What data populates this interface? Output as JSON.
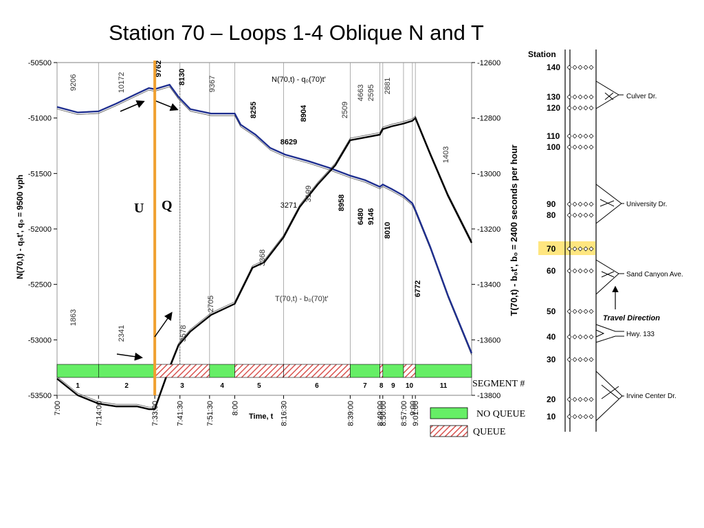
{
  "title": "Station 70 – Loops 1-4 Oblique N and T",
  "chart_data": {
    "type": "line",
    "xlabel": "Time, t",
    "ylabel_left": "N(70,t) - q₀t', q₀ = 9500 vph",
    "ylabel_right": "T(70,t) - b₀t', b₀ = 2400 seconds per hour",
    "ylim_left": [
      -53500,
      -50500
    ],
    "ylim_right": [
      -13800,
      -12600
    ],
    "yticks_left": [
      "-50500",
      "-51000",
      "-51500",
      "-52000",
      "-52500",
      "-53000",
      "-53500"
    ],
    "yticks_right": [
      "-12600",
      "-12800",
      "-13000",
      "-13200",
      "-13400",
      "-13600",
      "-13800"
    ],
    "xticks": [
      {
        "label": "7:00",
        "t": 0
      },
      {
        "label": "7:14:00",
        "t": 14
      },
      {
        "label": "7:33:00",
        "t": 33
      },
      {
        "label": "7:41:30",
        "t": 41.5
      },
      {
        "label": "7:51:30",
        "t": 51.5
      },
      {
        "label": "8:00",
        "t": 60
      },
      {
        "label": "8:16:30",
        "t": 76.5
      },
      {
        "label": "8:39:00",
        "t": 99
      },
      {
        "label": "8:49:00",
        "t": 109
      },
      {
        "label": "8:50:00",
        "t": 110
      },
      {
        "label": "8:57:00",
        "t": 117
      },
      {
        "label": "9:00",
        "t": 120
      },
      {
        "label": "9:01:00",
        "t": 121
      }
    ],
    "xlim": [
      0,
      140
    ],
    "series": [
      {
        "name": "N(70,t) - q₀(70)t'",
        "axis": "left",
        "color": "#1f2f8f",
        "t": [
          0,
          7,
          14,
          20,
          27,
          31,
          33,
          38,
          41,
          45,
          52,
          60,
          62,
          67,
          72,
          77,
          85,
          92,
          99,
          104,
          109,
          110,
          113,
          117,
          120,
          121,
          126,
          132,
          140
        ],
        "values": [
          -50900,
          -50950,
          -50940,
          -50870,
          -50780,
          -50730,
          -50740,
          -50700,
          -50810,
          -50920,
          -50960,
          -50960,
          -51060,
          -51150,
          -51270,
          -51330,
          -51390,
          -51450,
          -51520,
          -51560,
          -51620,
          -51600,
          -51640,
          -51700,
          -51770,
          -51830,
          -52160,
          -52600,
          -53120
        ]
      },
      {
        "name": "T(70,t) - b₀(70)t'",
        "axis": "right",
        "color": "#000000",
        "t": [
          0,
          7,
          14,
          20,
          27,
          31,
          33,
          38,
          41,
          45,
          52,
          60,
          66,
          70,
          76.5,
          82,
          88,
          94,
          99,
          104,
          109,
          110,
          113,
          117,
          120,
          121,
          126,
          132,
          140
        ],
        "values": [
          -13740,
          -13800,
          -13830,
          -13840,
          -13840,
          -13850,
          -13850,
          -13700,
          -13620,
          -13570,
          -13510,
          -13470,
          -13340,
          -13320,
          -13230,
          -13120,
          -13040,
          -12970,
          -12880,
          -12870,
          -12860,
          -12840,
          -12830,
          -12820,
          -12810,
          -12800,
          -12930,
          -13080,
          -13250
        ]
      }
    ],
    "vertical_markers": [
      {
        "t": 33,
        "label": "U",
        "color": "#f0a030"
      },
      {
        "t": 41.5,
        "label": "Q"
      }
    ],
    "annotations_left_axis": [
      {
        "text": "9206",
        "t": 5
      },
      {
        "text": "10172",
        "t": 20
      },
      {
        "text": "9762",
        "t": 37
      },
      {
        "text": "8130",
        "t": 43
      },
      {
        "text": "9367",
        "t": 56
      },
      {
        "text": "8255",
        "t": 68
      },
      {
        "text": "8904",
        "t": 87
      },
      {
        "text": "8629",
        "t": 80
      },
      {
        "text": "2509",
        "t": 102
      },
      {
        "text": "4663",
        "t": 108
      },
      {
        "text": "2595",
        "t": 110
      },
      {
        "text": "2881",
        "t": 118
      },
      {
        "text": "1403",
        "t": 135
      },
      {
        "text": "8958",
        "t": 103
      },
      {
        "text": "6480",
        "t": 109
      },
      {
        "text": "9146",
        "t": 111
      },
      {
        "text": "8010",
        "t": 117
      },
      {
        "text": "6772",
        "t": 125
      },
      {
        "text": "3271",
        "t": 80
      },
      {
        "text": "3199",
        "t": 85
      },
      {
        "text": "3368",
        "t": 75
      },
      {
        "text": "2705",
        "t": 55
      },
      {
        "text": "3578",
        "t": 44
      },
      {
        "text": "2341",
        "t": 23
      },
      {
        "text": "1863",
        "t": 6
      }
    ],
    "series_labels": [
      {
        "text": "N(70,t) - q₀(70)t'"
      },
      {
        "text": "T(70,t) - b₀(70)t'"
      }
    ],
    "segments": [
      {
        "label": "1",
        "t0": 0,
        "t1": 14,
        "queue": false
      },
      {
        "label": "2",
        "t0": 14,
        "t1": 33,
        "queue": false
      },
      {
        "label": "3",
        "t0": 33,
        "t1": 51.5,
        "queue": true
      },
      {
        "label": "4",
        "t0": 51.5,
        "t1": 60,
        "queue": false
      },
      {
        "label": "5",
        "t0": 60,
        "t1": 76.5,
        "queue": true
      },
      {
        "label": "6",
        "t0": 76.5,
        "t1": 99,
        "queue": true
      },
      {
        "label": "7",
        "t0": 99,
        "t1": 109,
        "queue": false
      },
      {
        "label": "8",
        "t0": 109,
        "t1": 110,
        "queue": true
      },
      {
        "label": "9",
        "t0": 110,
        "t1": 117,
        "queue": false
      },
      {
        "label": "10",
        "t0": 117,
        "t1": 121,
        "queue": true
      },
      {
        "label": "11",
        "t0": 121,
        "t1": 140,
        "queue": false
      }
    ],
    "segment_axis_label": "SEGMENT #",
    "legend": [
      {
        "label": "NO QUEUE",
        "queue": false
      },
      {
        "label": "QUEUE",
        "queue": true
      }
    ]
  },
  "station_diagram": {
    "header": "Station",
    "highlight_station": "70",
    "highlight_color": "#ffe680",
    "stations": [
      {
        "label": "140",
        "level": 0
      },
      {
        "label": "130",
        "level": 1
      },
      {
        "label": "120",
        "level": 2
      },
      {
        "label": "110",
        "level": 3
      },
      {
        "label": "100",
        "level": 4
      },
      {
        "label": "90",
        "level": 5
      },
      {
        "label": "80",
        "level": 6
      },
      {
        "label": "70",
        "level": 7
      },
      {
        "label": "60",
        "level": 8
      },
      {
        "label": "50",
        "level": 9
      },
      {
        "label": "40",
        "level": 10
      },
      {
        "label": "30",
        "level": 11
      },
      {
        "label": "20",
        "level": 12
      },
      {
        "label": "10",
        "level": 13
      }
    ],
    "interchanges": [
      "Culver Dr.",
      "University Dr.",
      "Sand Canyon Ave.",
      "Hwy. 133",
      "Irvine Center Dr."
    ],
    "travel_direction_label": "Travel Direction"
  }
}
